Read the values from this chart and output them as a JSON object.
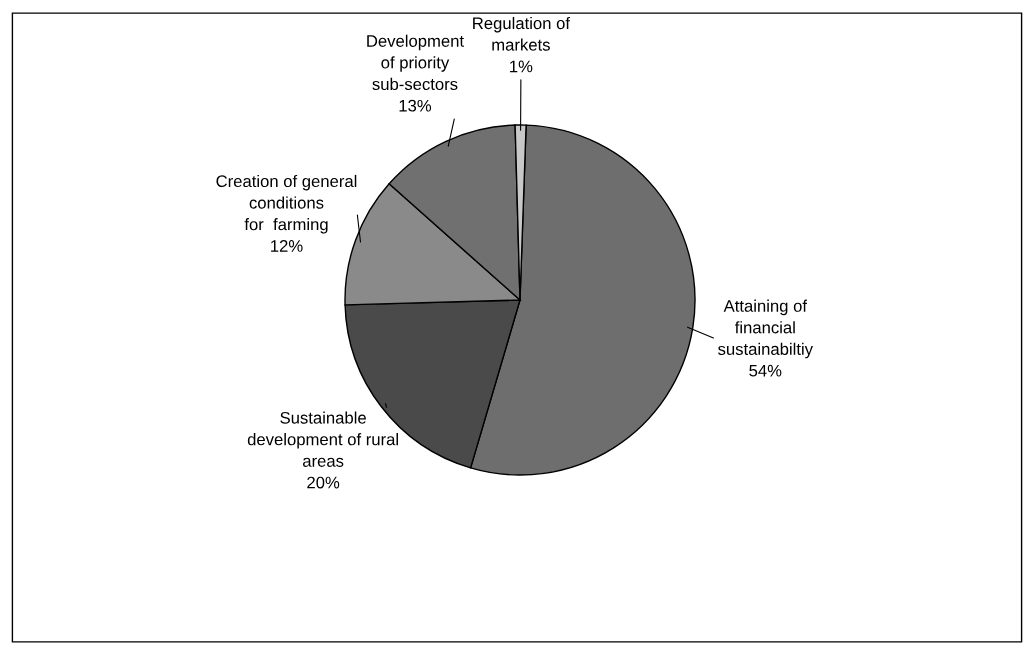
{
  "chart_data": {
    "type": "pie",
    "categories": [
      "Attaining of\nfinancial\nsustainabiltiy",
      "Sustainable\ndevelopment of rural\nareas",
      "Creation of general\nconditions\nfor  farming",
      "Development\nof priority\nsub-sectors",
      "Regulation of\nmarkets"
    ],
    "values": [
      54,
      20,
      12,
      13,
      1
    ],
    "value_labels": [
      "54%",
      "20%",
      "12%",
      "13%",
      "1%"
    ],
    "colors": [
      "#6e6e6e",
      "#4a4a4a",
      "#8a8a8a",
      "#707070",
      "#c8c8c8"
    ]
  }
}
